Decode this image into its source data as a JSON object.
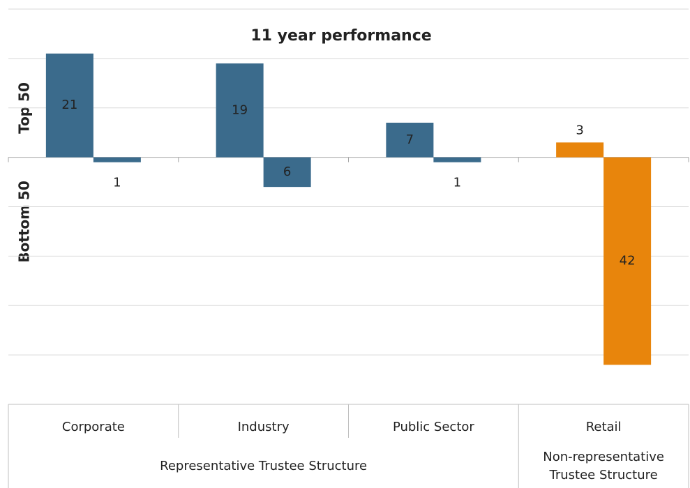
{
  "chart_data": {
    "type": "bar",
    "title": "11 year performance",
    "categories": [
      "Corporate",
      "Industry",
      "Public Sector",
      "Retail"
    ],
    "groups": [
      {
        "label": "Representative Trustee Structure",
        "span": 3
      },
      {
        "label": "Non-representative Trustee Structure",
        "span": 1
      }
    ],
    "series": [
      {
        "name": "Top 50",
        "colors": [
          "#3b6b8c",
          "#3b6b8c",
          "#3b6b8c",
          "#e8850c"
        ],
        "values": [
          21,
          19,
          7,
          3
        ]
      },
      {
        "name": "Bottom 50",
        "colors": [
          "#3b6b8c",
          "#3b6b8c",
          "#3b6b8c",
          "#e8850c"
        ],
        "values": [
          -1,
          -6,
          -1,
          -42
        ],
        "value_labels": [
          "1",
          "6",
          "1",
          "42"
        ]
      }
    ],
    "ylim": [
      -50,
      30
    ],
    "yticks": [
      -50,
      -40,
      -30,
      -20,
      -10,
      0,
      10,
      20,
      30
    ],
    "grid": true
  }
}
